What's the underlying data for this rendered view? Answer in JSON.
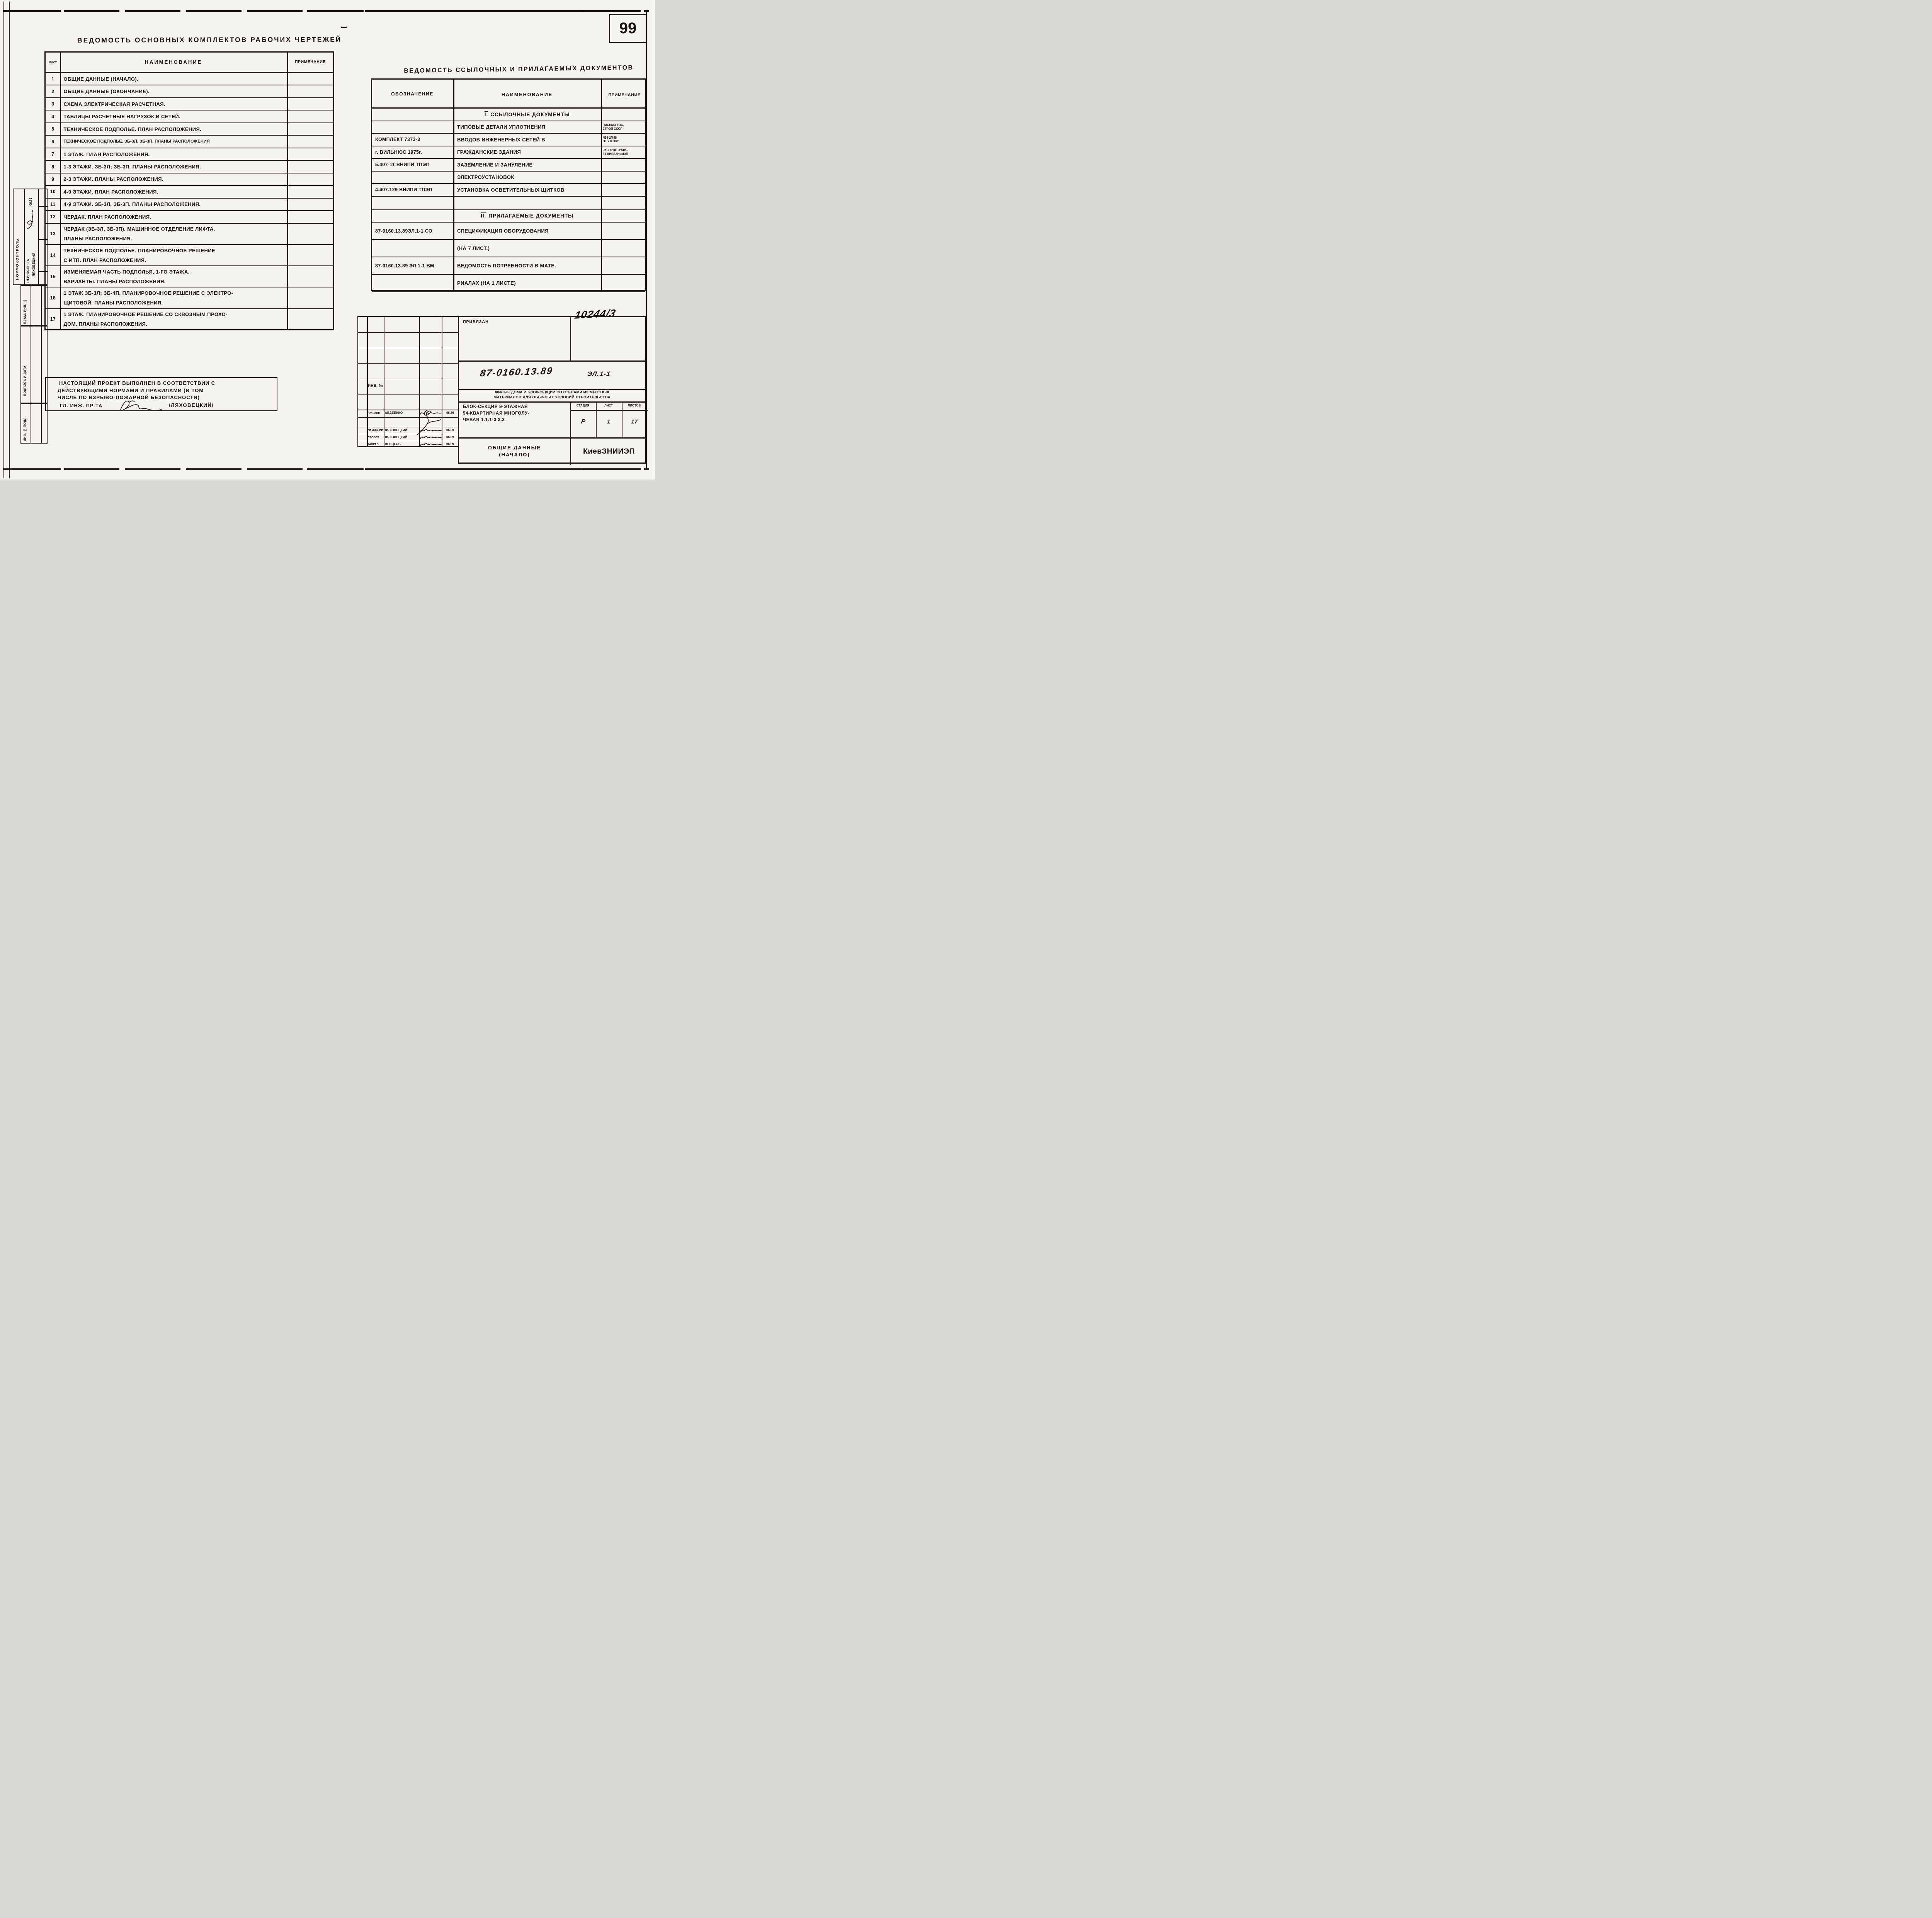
{
  "page": {
    "number": "99",
    "archive_number": "10244/3"
  },
  "left_table": {
    "title": "ВЕДОМОСТЬ ОСНОВНЫХ КОМПЛЕКТОВ РАБОЧИХ ЧЕРТЕЖЕЙ",
    "headers": {
      "sheet": "ЛИСТ",
      "name": "НАИМЕНОВАНИЕ",
      "note": "ПРИМЕЧАНИЕ"
    },
    "rows": [
      {
        "num": "1",
        "tall": false,
        "dense": false,
        "lines": [
          "ОБЩИЕ ДАННЫЕ (НАЧАЛО)."
        ]
      },
      {
        "num": "2",
        "tall": false,
        "dense": false,
        "lines": [
          "ОБЩИЕ ДАННЫЕ (ОКОНЧАНИЕ)."
        ]
      },
      {
        "num": "3",
        "tall": false,
        "dense": false,
        "lines": [
          "СХЕМА ЭЛЕКТРИЧЕСКАЯ РАСЧЕТНАЯ."
        ]
      },
      {
        "num": "4",
        "tall": false,
        "dense": false,
        "lines": [
          "ТАБЛИЦЫ РАСЧЕТНЫЕ НАГРУЗОК И СЕТЕЙ."
        ]
      },
      {
        "num": "5",
        "tall": false,
        "dense": false,
        "lines": [
          "ТЕХНИЧЕСКОЕ ПОДПОЛЬЕ. ПЛАН РАСПОЛОЖЕНИЯ."
        ]
      },
      {
        "num": "6",
        "tall": false,
        "dense": true,
        "lines": [
          "ТЕХНИЧЕСКОЕ ПОДПОЛЬЕ. ЗБ-3Л, ЗБ-3П. ПЛАНЫ РАСПОЛОЖЕНИЯ"
        ]
      },
      {
        "num": "7",
        "tall": false,
        "dense": false,
        "lines": [
          "1 ЭТАЖ. ПЛАН РАСПОЛОЖЕНИЯ."
        ]
      },
      {
        "num": "8",
        "tall": false,
        "dense": false,
        "lines": [
          "1-3 ЭТАЖИ. ЗБ-3Л; ЗБ-3П. ПЛАНЫ РАСПОЛОЖЕНИЯ."
        ]
      },
      {
        "num": "9",
        "tall": false,
        "dense": false,
        "lines": [
          "2-3 ЭТАЖИ. ПЛАНЫ РАСПОЛОЖЕНИЯ."
        ]
      },
      {
        "num": "10",
        "tall": false,
        "dense": false,
        "lines": [
          "4-9 ЭТАЖИ. ПЛАН РАСПОЛОЖЕНИЯ."
        ]
      },
      {
        "num": "11",
        "tall": false,
        "dense": false,
        "lines": [
          "4-9 ЭТАЖИ. ЗБ-3Л, ЗБ-3П. ПЛАНЫ РАСПОЛОЖЕНИЯ."
        ]
      },
      {
        "num": "12",
        "tall": false,
        "dense": false,
        "lines": [
          "ЧЕРДАК. ПЛАН РАСПОЛОЖЕНИЯ."
        ]
      },
      {
        "num": "13",
        "tall": true,
        "dense": false,
        "lines": [
          "ЧЕРДАК (ЗБ-3Л, ЗБ-3П). МАШИННОЕ ОТДЕЛЕНИЕ ЛИФТА.",
          "ПЛАНЫ РАСПОЛОЖЕНИЯ."
        ]
      },
      {
        "num": "14",
        "tall": true,
        "dense": false,
        "lines": [
          "ТЕХНИЧЕСКОЕ ПОДПОЛЬЕ. ПЛАНИРОВОЧНОЕ РЕШЕНИЕ",
          "С ИТП. ПЛАН РАСПОЛОЖЕНИЯ."
        ]
      },
      {
        "num": "15",
        "tall": true,
        "dense": false,
        "lines": [
          "ИЗМЕНЯЕМАЯ ЧАСТЬ ПОДПОЛЬЯ, 1-ГО ЭТАЖА.",
          "ВАРИАНТЫ. ПЛАНЫ РАСПОЛОЖЕНИЯ."
        ]
      },
      {
        "num": "16",
        "tall": true,
        "dense": false,
        "lines": [
          "1 ЭТАЖ ЗБ-3Л; ЗБ-4П. ПЛАНИРОВОЧНОЕ РЕШЕНИЕ С ЭЛЕКТРО-",
          "ЩИТОВОЙ. ПЛАНЫ РАСПОЛОЖЕНИЯ."
        ]
      },
      {
        "num": "17",
        "tall": true,
        "dense": false,
        "lines": [
          "1 ЭТАЖ. ПЛАНИРОВОЧНОЕ РЕШЕНИЕ СО СКВОЗНЫМ ПРОХО-",
          "ДОМ. ПЛАНЫ РАСПОЛОЖЕНИЯ."
        ]
      }
    ]
  },
  "note_box": {
    "lines": [
      "НАСТОЯЩИЙ ПРОЕКТ ВЫПОЛНЕН В СООТВЕТСТВИИ С",
      "ДЕЙСТВУЮЩИМИ НОРМАМИ И ПРАВИЛАМИ (В ТОМ",
      "ЧИСЛЕ ПО ВЗРЫВО-ПОЖАРНОЙ БЕЗОПАСНОСТИ)"
    ],
    "signer_label": "ГЛ. ИНЖ. ПР-ТА",
    "signer_name": "/ЛЯХОВЕЦКИЙ/"
  },
  "right_table": {
    "title": "ВЕДОМОСТЬ ССЫЛОЧНЫХ И ПРИЛАГАЕМЫХ ДОКУМЕНТОВ",
    "headers": {
      "designation": "ОБОЗНАЧЕНИЕ",
      "name": "НАИМЕНОВАНИЕ",
      "note": "ПРИМЕЧАНИЕ"
    },
    "sections": [
      {
        "title": "I. ССЫЛОЧНЫЕ ДОКУМЕНТЫ",
        "rows": [
          {
            "d": "",
            "n": "ТИПОВЫЕ ДЕТАЛИ УПЛОТНЕНИЯ",
            "note": [
              "ПИСЬМО ГОС-",
              "СТРОЯ СССР"
            ]
          },
          {
            "d": "КОМПЛЕКТ 7373-3",
            "n": "ВВОДОВ ИНЖЕНЕРНЫХ СЕТЕЙ В",
            "note": [
              "N14-2/498",
              "ОТ 7.03.80г."
            ]
          },
          {
            "d": "г. ВИЛЬНЮС 1975г.",
            "n": "ГРАЖДАНСКИЕ ЗДАНИЯ",
            "note": [
              "РАСПРОСТРАНЯ-",
              "ЕТ КИЕВЗНИИЭП"
            ]
          },
          {
            "d": "5.407-11 ВНИПИ ТПЭП",
            "n": "ЗАЗЕМЛЕНИЕ И ЗАНУЛЕНИЕ",
            "note": []
          },
          {
            "d": "",
            "n": "ЭЛЕКТРОУСТАНОВОК",
            "note": []
          },
          {
            "d": "4.407.129 ВНИПИ ТПЭП",
            "n": "УСТАНОВКА ОСВЕТИТЕЛЬНЫХ ЩИТКОВ",
            "note": []
          }
        ]
      },
      {
        "title": "II. ПРИЛАГАЕМЫЕ ДОКУМЕНТЫ",
        "rows": [
          {
            "d": "87-0160.13.89ЭЛ.1-1 СО",
            "n": "СПЕЦИФИКАЦИЯ ОБОРУДОВАНИЯ",
            "note": []
          },
          {
            "d": "",
            "n": "(НА 7 ЛИСТ.)",
            "note": []
          },
          {
            "d": "87-0160.13.89 ЭЛ.1-1 ВМ",
            "n": "ВЕДОМОСТЬ ПОТРЕБНОСТИ В МАТЕ-",
            "note": []
          },
          {
            "d": "",
            "n": "РИАЛАХ (НА 1 ЛИСТЕ)",
            "note": []
          }
        ]
      }
    ]
  },
  "title_block": {
    "attached_label": "ПРИВЯЗАН",
    "inventory_label": "ИНВ. №",
    "document_code": "87-0160.13.89",
    "sheet_code": "ЭЛ.1-1",
    "series_line1": "ЖИЛЫЕ ДОМА И БЛОК-СЕКЦИИ СО СТЕНАМИ ИЗ МЕСТНЫХ",
    "series_line2": "МАТЕРИАЛОВ ДЛЯ ОБЫЧНЫХ УСЛОВИЙ СТРОИТЕЛЬСТВА",
    "object_lines": [
      "БЛОК-СЕКЦИЯ 9-ЭТАЖНАЯ",
      "54-КВАРТИРНАЯ МНОГОЛУ-",
      "ЧЕВАЯ 1.1.1-3.3.3"
    ],
    "stage_header": "СТАДИЯ",
    "sheet_header": "ЛИСТ",
    "sheets_header": "ЛИСТОВ",
    "stage_value": "Р",
    "sheet_value": "1",
    "sheets_value": "17",
    "content_line1": "ОБЩИЕ ДАННЫЕ",
    "content_line2": "(НАЧАЛО)",
    "organization": "КиевЗНИИЭП",
    "signature_rows": [
      {
        "role": "НАЧ.АПМ",
        "name": "АВДЕЕНКО",
        "date": "06.89"
      },
      {
        "role": "ГЛ.ИНЖ.ПР.",
        "name": "ЛЯХОВЕЦКИЙ",
        "date": "06.89"
      },
      {
        "role": "ПРОВЕР.",
        "name": "ЛЯХОВЕЦКИЙ",
        "date": "06.89"
      },
      {
        "role": "РАЗРАБ.",
        "name": "ВЕНЦЕЛЬ",
        "date": "06.89"
      }
    ]
  },
  "sidebar": {
    "normcontrol_label": "НОРМОКОНТРОЛЬ",
    "chief_role": "ГЛ.ИНЖ.ПР-ТА",
    "chief_name": "ЛЯХОВЕЦКИЙ",
    "chief_date": "06.89",
    "vzam_label": "ВЗАМ. ИНВ. №",
    "podpis_label": "ПОДПИСЬ И ДАТА",
    "inv_podl_label": "ИНВ. № ПОДЛ."
  }
}
